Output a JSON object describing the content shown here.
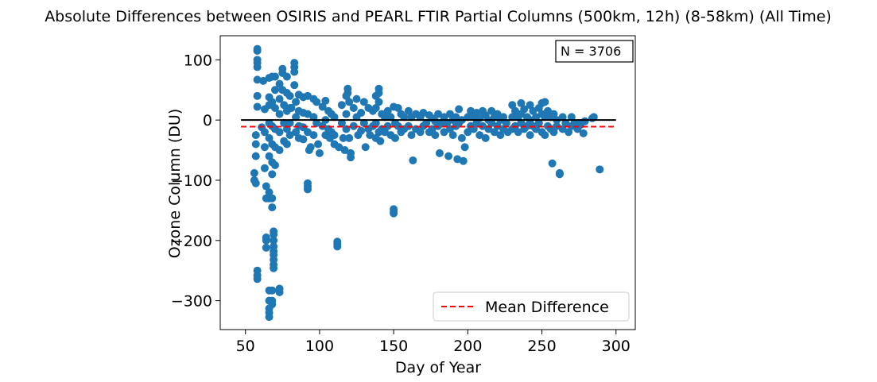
{
  "chart_data": {
    "type": "scatter",
    "title": "Absolute Differences between OSIRIS and PEARL FTIR Partial Columns (500km, 12h) (8-58km) (All Time)",
    "xlabel": "Day of Year",
    "ylabel": "Ozone Column (DU)",
    "xlim": [
      33,
      313
    ],
    "ylim": [
      -348,
      140
    ],
    "xticks": [
      50,
      100,
      150,
      200,
      250,
      300
    ],
    "yticks": [
      100,
      0,
      -100,
      -200,
      -300
    ],
    "ytick_labels": [
      "100",
      "0",
      "−100",
      "−200",
      "−300"
    ],
    "grid": false,
    "legend_position": "lower right",
    "annotation": "N = 3706",
    "colors": {
      "points": "#1f77b4",
      "zero_line": "#000000",
      "mean_line": "#ff0000"
    },
    "series": [
      {
        "type": "scatter",
        "points": [
          [
            58,
            115
          ],
          [
            58,
            118
          ],
          [
            58,
            100
          ],
          [
            58,
            95
          ],
          [
            58,
            88
          ],
          [
            58,
            67
          ],
          [
            58,
            40
          ],
          [
            58,
            22
          ],
          [
            57,
            -25
          ],
          [
            57,
            -40
          ],
          [
            57,
            -60
          ],
          [
            56,
            -88
          ],
          [
            56,
            -100
          ],
          [
            57,
            -105
          ],
          [
            58,
            -250
          ],
          [
            58,
            -258
          ],
          [
            58,
            -264
          ],
          [
            61,
            -12
          ],
          [
            62,
            65
          ],
          [
            63,
            18
          ],
          [
            63,
            -20
          ],
          [
            63,
            -45
          ],
          [
            63,
            -80
          ],
          [
            64,
            -110
          ],
          [
            64,
            -130
          ],
          [
            64,
            -195
          ],
          [
            64,
            -200
          ],
          [
            64,
            -212
          ],
          [
            66,
            70
          ],
          [
            66,
            38
          ],
          [
            66,
            25
          ],
          [
            66,
            -5
          ],
          [
            66,
            -30
          ],
          [
            66,
            -60
          ],
          [
            66,
            -120
          ],
          [
            66,
            -130
          ],
          [
            66,
            -283
          ],
          [
            66,
            -300
          ],
          [
            66,
            -313
          ],
          [
            66,
            -320
          ],
          [
            66,
            -327
          ],
          [
            68,
            72
          ],
          [
            68,
            30
          ],
          [
            68,
            -10
          ],
          [
            68,
            -40
          ],
          [
            68,
            -70
          ],
          [
            68,
            -90
          ],
          [
            68,
            -130
          ],
          [
            68,
            -145
          ],
          [
            69,
            -185
          ],
          [
            69,
            -190
          ],
          [
            69,
            -200
          ],
          [
            69,
            -210
          ],
          [
            69,
            -218
          ],
          [
            69,
            -224
          ],
          [
            69,
            -232
          ],
          [
            69,
            -240
          ],
          [
            69,
            -246
          ],
          [
            68,
            -283
          ],
          [
            68,
            -300
          ],
          [
            68,
            -306
          ],
          [
            70,
            72
          ],
          [
            70,
            50
          ],
          [
            70,
            20
          ],
          [
            70,
            -15
          ],
          [
            70,
            -45
          ],
          [
            70,
            -75
          ],
          [
            73,
            60
          ],
          [
            73,
            35
          ],
          [
            73,
            10
          ],
          [
            73,
            -20
          ],
          [
            73,
            -50
          ],
          [
            73,
            -280
          ],
          [
            73,
            -286
          ],
          [
            75,
            85
          ],
          [
            75,
            78
          ],
          [
            75,
            50
          ],
          [
            76,
            25
          ],
          [
            76,
            -5
          ],
          [
            76,
            -35
          ],
          [
            78,
            72
          ],
          [
            78,
            45
          ],
          [
            78,
            15
          ],
          [
            78,
            -15
          ],
          [
            78,
            -40
          ],
          [
            80,
            40
          ],
          [
            80,
            20
          ],
          [
            80,
            -5
          ],
          [
            80,
            -25
          ],
          [
            81,
            20
          ],
          [
            83,
            95
          ],
          [
            83,
            88
          ],
          [
            83,
            80
          ],
          [
            83,
            58
          ],
          [
            84,
            30
          ],
          [
            84,
            5
          ],
          [
            84,
            -20
          ],
          [
            86,
            42
          ],
          [
            86,
            15
          ],
          [
            86,
            -10
          ],
          [
            86,
            -30
          ],
          [
            89,
            38
          ],
          [
            89,
            12
          ],
          [
            89,
            -12
          ],
          [
            89,
            -32
          ],
          [
            92,
            -105
          ],
          [
            92,
            -110
          ],
          [
            92,
            -115
          ],
          [
            92,
            40
          ],
          [
            92,
            10
          ],
          [
            92,
            -20
          ],
          [
            93,
            -50
          ],
          [
            94,
            -45
          ],
          [
            96,
            35
          ],
          [
            96,
            5
          ],
          [
            96,
            -25
          ],
          [
            98,
            30
          ],
          [
            98,
            -5
          ],
          [
            99,
            -40
          ],
          [
            100,
            -55
          ],
          [
            102,
            22
          ],
          [
            102,
            -10
          ],
          [
            104,
            32
          ],
          [
            104,
            0
          ],
          [
            104,
            -25
          ],
          [
            106,
            15
          ],
          [
            106,
            -15
          ],
          [
            107,
            -30
          ],
          [
            108,
            10
          ],
          [
            108,
            -20
          ],
          [
            110,
            5
          ],
          [
            110,
            -25
          ],
          [
            110,
            -40
          ],
          [
            112,
            -202
          ],
          [
            112,
            -206
          ],
          [
            112,
            -210
          ],
          [
            113,
            -45
          ],
          [
            115,
            25
          ],
          [
            115,
            -5
          ],
          [
            116,
            -30
          ],
          [
            117,
            -50
          ],
          [
            118,
            40
          ],
          [
            118,
            10
          ],
          [
            118,
            -15
          ],
          [
            119,
            52
          ],
          [
            119,
            45
          ],
          [
            120,
            30
          ],
          [
            120,
            -30
          ],
          [
            121,
            -55
          ],
          [
            121,
            -62
          ],
          [
            123,
            20
          ],
          [
            123,
            -10
          ],
          [
            125,
            35
          ],
          [
            125,
            5
          ],
          [
            126,
            -25
          ],
          [
            128,
            12
          ],
          [
            128,
            -18
          ],
          [
            130,
            30
          ],
          [
            130,
            -5
          ],
          [
            131,
            -45
          ],
          [
            133,
            20
          ],
          [
            133,
            -15
          ],
          [
            134,
            -25
          ],
          [
            136,
            15
          ],
          [
            136,
            -10
          ],
          [
            138,
            40
          ],
          [
            138,
            20
          ],
          [
            138,
            -5
          ],
          [
            138,
            -30
          ],
          [
            140,
            52
          ],
          [
            140,
            45
          ],
          [
            140,
            30
          ],
          [
            140,
            -20
          ],
          [
            141,
            -35
          ],
          [
            142,
            10
          ],
          [
            142,
            -15
          ],
          [
            144,
            5
          ],
          [
            144,
            -20
          ],
          [
            146,
            15
          ],
          [
            146,
            -10
          ],
          [
            148,
            5
          ],
          [
            148,
            -25
          ],
          [
            150,
            -148
          ],
          [
            150,
            -152
          ],
          [
            150,
            -155
          ],
          [
            150,
            22
          ],
          [
            151,
            -5
          ],
          [
            151,
            -30
          ],
          [
            153,
            20
          ],
          [
            153,
            -10
          ],
          [
            155,
            10
          ],
          [
            155,
            -20
          ],
          [
            157,
            5
          ],
          [
            157,
            -15
          ],
          [
            160,
            15
          ],
          [
            160,
            -10
          ],
          [
            162,
            5
          ],
          [
            162,
            -25
          ],
          [
            163,
            -67
          ],
          [
            165,
            10
          ],
          [
            165,
            -15
          ],
          [
            168,
            5
          ],
          [
            168,
            -20
          ],
          [
            170,
            12
          ],
          [
            170,
            -10
          ],
          [
            172,
            -5
          ],
          [
            174,
            8
          ],
          [
            174,
            -20
          ],
          [
            176,
            3
          ],
          [
            176,
            -15
          ],
          [
            178,
            -2
          ],
          [
            178,
            -25
          ],
          [
            180,
            10
          ],
          [
            180,
            -10
          ],
          [
            181,
            -55
          ],
          [
            182,
            -5
          ],
          [
            184,
            5
          ],
          [
            184,
            -20
          ],
          [
            186,
            -5
          ],
          [
            187,
            -60
          ],
          [
            188,
            10
          ],
          [
            188,
            -15
          ],
          [
            190,
            0
          ],
          [
            190,
            -25
          ],
          [
            192,
            5
          ],
          [
            192,
            -10
          ],
          [
            193,
            -65
          ],
          [
            194,
            18
          ],
          [
            194,
            -5
          ],
          [
            196,
            0
          ],
          [
            196,
            -30
          ],
          [
            197,
            -68
          ],
          [
            198,
            -45
          ],
          [
            200,
            5
          ],
          [
            200,
            -20
          ],
          [
            202,
            15
          ],
          [
            202,
            -10
          ],
          [
            204,
            5
          ],
          [
            204,
            -15
          ],
          [
            206,
            12
          ],
          [
            206,
            -5
          ],
          [
            208,
            3
          ],
          [
            208,
            -25
          ],
          [
            210,
            15
          ],
          [
            210,
            -10
          ],
          [
            212,
            8
          ],
          [
            212,
            -30
          ],
          [
            214,
            0
          ],
          [
            214,
            -15
          ],
          [
            216,
            15
          ],
          [
            216,
            -5
          ],
          [
            218,
            5
          ],
          [
            218,
            -20
          ],
          [
            220,
            10
          ],
          [
            220,
            -10
          ],
          [
            222,
            0
          ],
          [
            222,
            -25
          ],
          [
            224,
            5
          ],
          [
            224,
            -15
          ],
          [
            226,
            -5
          ],
          [
            227,
            -20
          ],
          [
            230,
            25
          ],
          [
            230,
            5
          ],
          [
            230,
            -15
          ],
          [
            232,
            15
          ],
          [
            232,
            -10
          ],
          [
            234,
            5
          ],
          [
            234,
            -20
          ],
          [
            236,
            28
          ],
          [
            236,
            10
          ],
          [
            236,
            -5
          ],
          [
            238,
            18
          ],
          [
            238,
            -15
          ],
          [
            240,
            5
          ],
          [
            240,
            -10
          ],
          [
            242,
            25
          ],
          [
            242,
            0
          ],
          [
            242,
            -25
          ],
          [
            244,
            15
          ],
          [
            244,
            -10
          ],
          [
            246,
            5
          ],
          [
            246,
            -15
          ],
          [
            248,
            20
          ],
          [
            248,
            -5
          ],
          [
            250,
            28
          ],
          [
            250,
            10
          ],
          [
            250,
            -20
          ],
          [
            252,
            30
          ],
          [
            252,
            5
          ],
          [
            252,
            -25
          ],
          [
            254,
            15
          ],
          [
            254,
            -10
          ],
          [
            256,
            5
          ],
          [
            256,
            -15
          ],
          [
            257,
            -72
          ],
          [
            258,
            10
          ],
          [
            258,
            -20
          ],
          [
            260,
            0
          ],
          [
            260,
            -10
          ],
          [
            262,
            -88
          ],
          [
            262,
            -90
          ],
          [
            264,
            5
          ],
          [
            264,
            -15
          ],
          [
            266,
            -5
          ],
          [
            268,
            -20
          ],
          [
            270,
            5
          ],
          [
            270,
            -10
          ],
          [
            272,
            -5
          ],
          [
            274,
            -15
          ],
          [
            276,
            -8
          ],
          [
            278,
            -22
          ],
          [
            276,
            -5
          ],
          [
            279,
            -2
          ],
          [
            284,
            3
          ],
          [
            285,
            5
          ],
          [
            289,
            -82
          ]
        ]
      },
      {
        "type": "line",
        "points": [
          [
            47,
            0
          ],
          [
            300,
            0
          ]
        ]
      },
      {
        "type": "line",
        "name": "Mean Difference",
        "points": [
          [
            47,
            -11
          ],
          [
            300,
            -11
          ]
        ]
      }
    ]
  }
}
